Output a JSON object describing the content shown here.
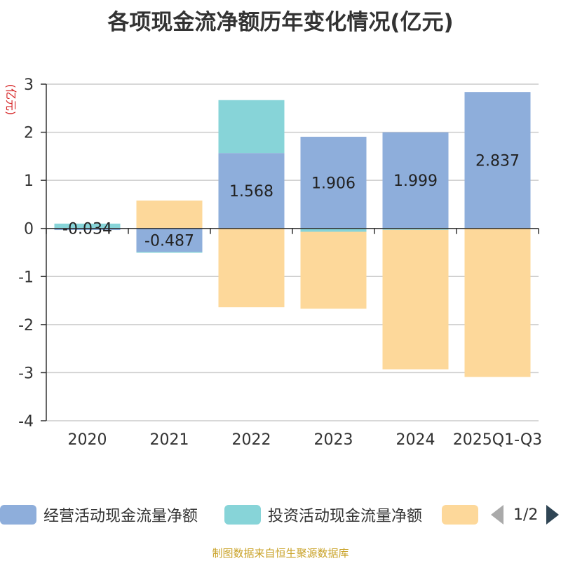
{
  "chart_data": {
    "type": "bar",
    "title": "各项现金流净额历年变化情况(亿元)",
    "ylabel": "(亿元)",
    "xlabel": "",
    "ylim": [
      -4,
      3
    ],
    "yticks": [
      3,
      2,
      1,
      0,
      -1,
      -2,
      -3,
      -4
    ],
    "grid": true,
    "categories": [
      "2020",
      "2021",
      "2022",
      "2023",
      "2024",
      "2025Q1-Q3"
    ],
    "series": [
      {
        "name": "经营活动现金流量净额",
        "color": "#8eaedb",
        "values": [
          -0.034,
          -0.487,
          1.568,
          1.906,
          1.999,
          2.837
        ],
        "labels": [
          "-0.034",
          "-0.487",
          "1.568",
          "1.906",
          "1.999",
          "2.837"
        ]
      },
      {
        "name": "投资活动现金流量净额",
        "color": "#87d4d8",
        "values": [
          0.1,
          -0.02,
          1.1,
          -0.07,
          -0.03,
          -0.01
        ]
      },
      {
        "name": "",
        "color": "#fdd89a",
        "values": [
          0.0,
          0.58,
          -1.64,
          -1.6,
          -2.9,
          -3.08
        ]
      }
    ],
    "legend": {
      "position": "bottom",
      "page": "1/2"
    }
  },
  "source": "制图数据来自恒生聚源数据库"
}
